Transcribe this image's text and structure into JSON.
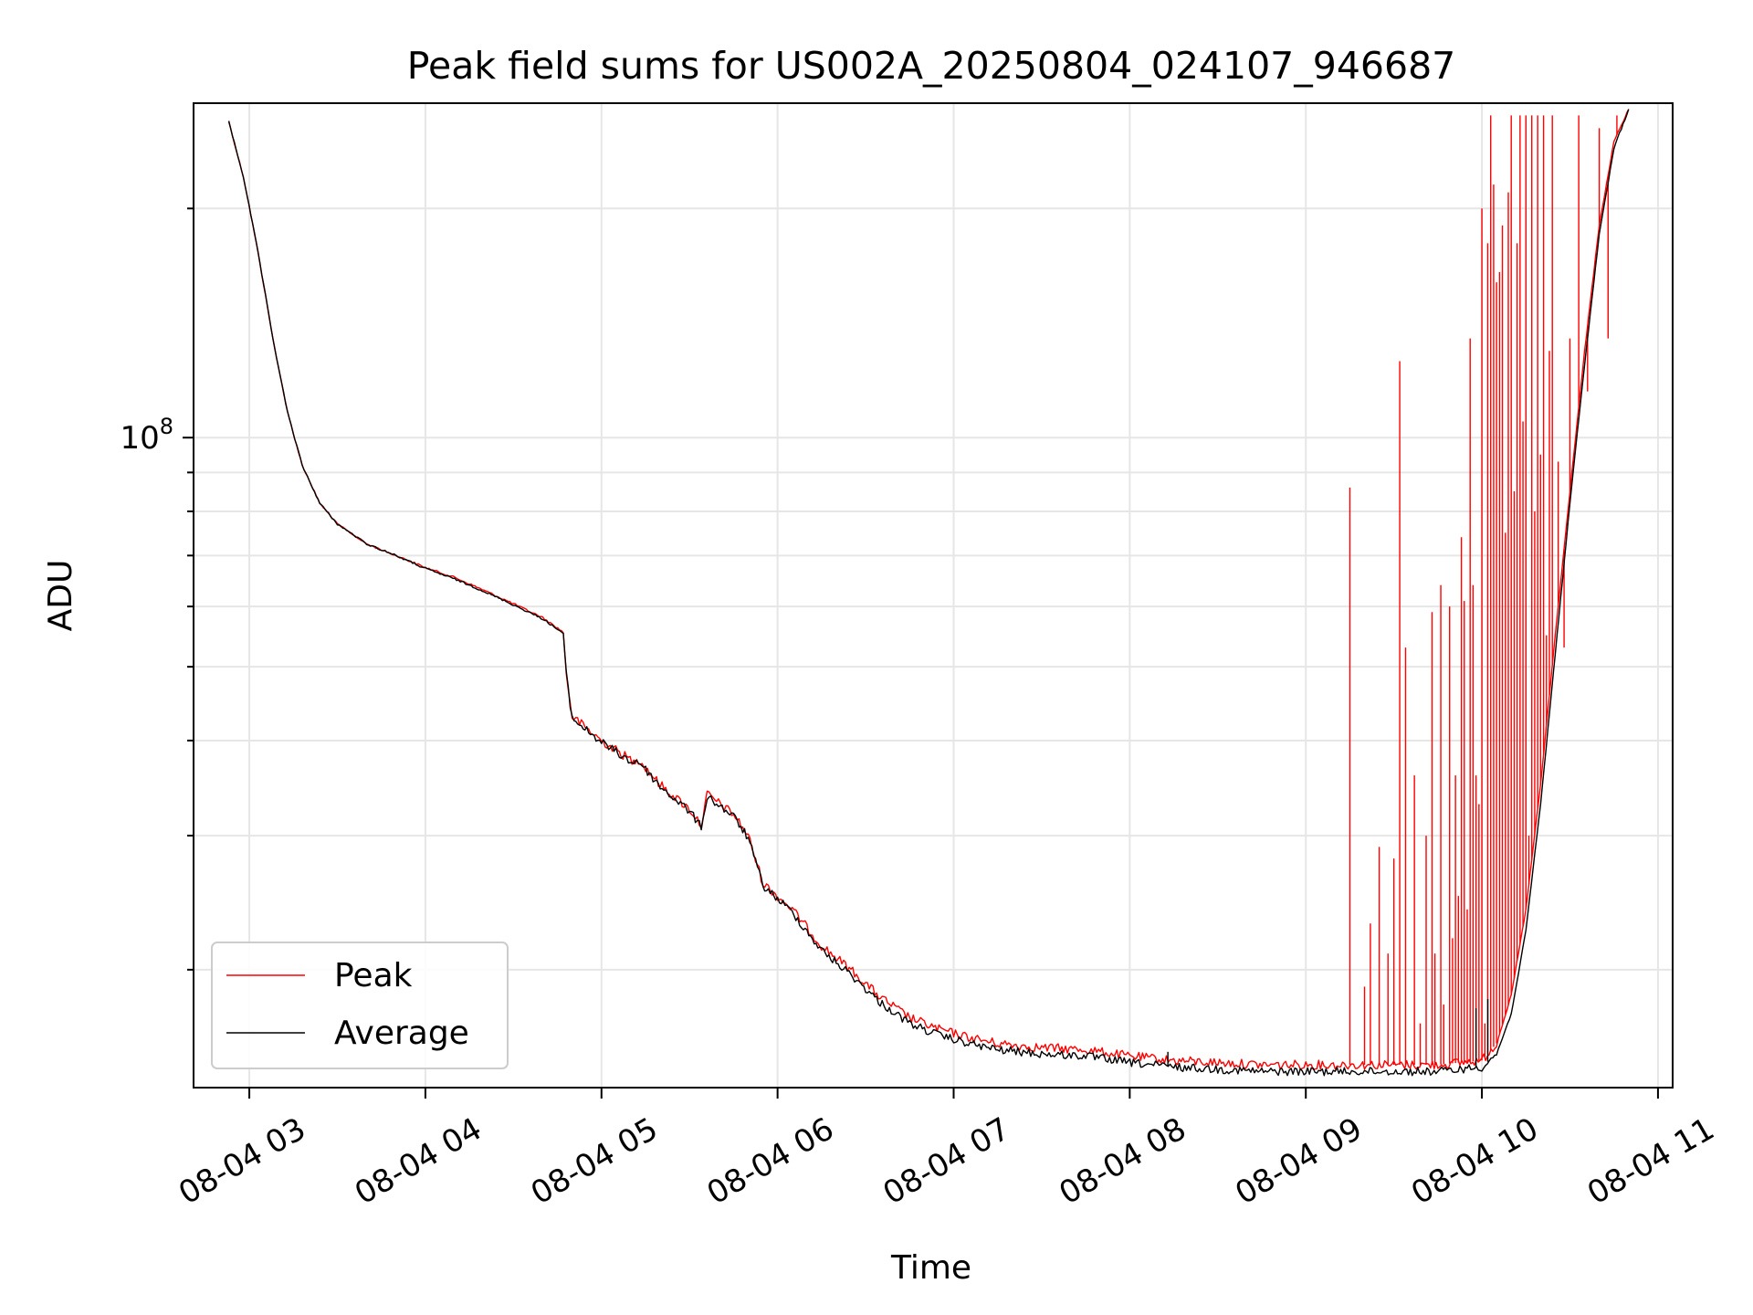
{
  "chart_data": {
    "type": "line",
    "title": "Peak field sums for US002A_20250804_024107_946687",
    "xlabel": "Time",
    "ylabel": "ADU",
    "yscale": "log",
    "grid": true,
    "legend_position": "lower-left",
    "ylim": [
      14000000,
      275000000
    ],
    "xlim": [
      "2025-08-04 02:41",
      "2025-08-04 11:05"
    ],
    "x_ticks": [
      "2025-08-04 03:00",
      "2025-08-04 04:00",
      "2025-08-04 05:00",
      "2025-08-04 06:00",
      "2025-08-04 07:00",
      "2025-08-04 08:00",
      "2025-08-04 09:00",
      "2025-08-04 10:00",
      "2025-08-04 11:00"
    ],
    "x_tick_labels": [
      "08-04 03",
      "08-04 04",
      "08-04 05",
      "08-04 06",
      "08-04 07",
      "08-04 08",
      "08-04 09",
      "08-04 10",
      "08-04 11"
    ],
    "y_major_tick_labels": [
      {
        "value": 100000000,
        "base": "10",
        "exp": "8"
      }
    ],
    "series": [
      {
        "name": "Peak",
        "color": "#ff0000",
        "points": [
          [
            "2025-08-04 02:53",
            260000000
          ],
          [
            "2025-08-04 02:58",
            220000000
          ],
          [
            "2025-08-04 03:03",
            175000000
          ],
          [
            "2025-08-04 03:08",
            135000000
          ],
          [
            "2025-08-04 03:13",
            108000000
          ],
          [
            "2025-08-04 03:18",
            92000000
          ],
          [
            "2025-08-04 03:24",
            82000000
          ],
          [
            "2025-08-04 03:30",
            77000000
          ],
          [
            "2025-08-04 03:40",
            72500000
          ],
          [
            "2025-08-04 03:50",
            70000000
          ],
          [
            "2025-08-04 04:00",
            67500000
          ],
          [
            "2025-08-04 04:10",
            65500000
          ],
          [
            "2025-08-04 04:20",
            63000000
          ],
          [
            "2025-08-04 04:30",
            60500000
          ],
          [
            "2025-08-04 04:40",
            58000000
          ],
          [
            "2025-08-04 04:47",
            55500000
          ],
          [
            "2025-08-04 04:48",
            49000000
          ],
          [
            "2025-08-04 04:50",
            43000000
          ],
          [
            "2025-08-04 05:00",
            40000000
          ],
          [
            "2025-08-04 05:11",
            37500000
          ],
          [
            "2025-08-04 05:12",
            38000000
          ],
          [
            "2025-08-04 05:20",
            35000000
          ],
          [
            "2025-08-04 05:30",
            32500000
          ],
          [
            "2025-08-04 05:34",
            31000000
          ],
          [
            "2025-08-04 05:36",
            34000000
          ],
          [
            "2025-08-04 05:45",
            32000000
          ],
          [
            "2025-08-04 05:50",
            30000000
          ],
          [
            "2025-08-04 05:55",
            26000000
          ],
          [
            "2025-08-04 06:05",
            24000000
          ],
          [
            "2025-08-04 06:15",
            21500000
          ],
          [
            "2025-08-04 06:25",
            20000000
          ],
          [
            "2025-08-04 06:35",
            18400000
          ],
          [
            "2025-08-04 06:45",
            17300000
          ],
          [
            "2025-08-04 06:55",
            16700000
          ],
          [
            "2025-08-04 07:05",
            16300000
          ],
          [
            "2025-08-04 07:15",
            16000000
          ],
          [
            "2025-08-04 07:30",
            15800000
          ],
          [
            "2025-08-04 07:45",
            15700000
          ],
          [
            "2025-08-04 08:00",
            15400000
          ],
          [
            "2025-08-04 08:15",
            15200000
          ],
          [
            "2025-08-04 08:30",
            15100000
          ],
          [
            "2025-08-04 08:45",
            15000000
          ],
          [
            "2025-08-04 09:00",
            15000000
          ],
          [
            "2025-08-04 09:15",
            15000000
          ],
          [
            "2025-08-04 09:30",
            15000000
          ],
          [
            "2025-08-04 09:45",
            15000000
          ],
          [
            "2025-08-04 10:00",
            15200000
          ],
          [
            "2025-08-04 10:05",
            16000000
          ],
          [
            "2025-08-04 10:10",
            18500000
          ],
          [
            "2025-08-04 10:15",
            24000000
          ],
          [
            "2025-08-04 10:20",
            35000000
          ],
          [
            "2025-08-04 10:25",
            55000000
          ],
          [
            "2025-08-04 10:30",
            85000000
          ],
          [
            "2025-08-04 10:35",
            130000000
          ],
          [
            "2025-08-04 10:40",
            190000000
          ],
          [
            "2025-08-04 10:45",
            245000000
          ],
          [
            "2025-08-04 10:50",
            270000000
          ]
        ],
        "spikes": [
          [
            "2025-08-04 09:15",
            86000000
          ],
          [
            "2025-08-04 09:20",
            19000000
          ],
          [
            "2025-08-04 09:22",
            23000000
          ],
          [
            "2025-08-04 09:25",
            29000000
          ],
          [
            "2025-08-04 09:28",
            21000000
          ],
          [
            "2025-08-04 09:30",
            28000000
          ],
          [
            "2025-08-04 09:32",
            126000000
          ],
          [
            "2025-08-04 09:34",
            53000000
          ],
          [
            "2025-08-04 09:37",
            36000000
          ],
          [
            "2025-08-04 09:39",
            17000000
          ],
          [
            "2025-08-04 09:41",
            30000000
          ],
          [
            "2025-08-04 09:43",
            59000000
          ],
          [
            "2025-08-04 09:44",
            21000000
          ],
          [
            "2025-08-04 09:46",
            64000000
          ],
          [
            "2025-08-04 09:47",
            18000000
          ],
          [
            "2025-08-04 09:49",
            60000000
          ],
          [
            "2025-08-04 09:50",
            22000000
          ],
          [
            "2025-08-04 09:51",
            36000000
          ],
          [
            "2025-08-04 09:52",
            25000000
          ],
          [
            "2025-08-04 09:53",
            74000000
          ],
          [
            "2025-08-04 09:54",
            61000000
          ],
          [
            "2025-08-04 09:55",
            24000000
          ],
          [
            "2025-08-04 09:56",
            135000000
          ],
          [
            "2025-08-04 09:57",
            64000000
          ],
          [
            "2025-08-04 09:58",
            36000000
          ],
          [
            "2025-08-04 09:59",
            33000000
          ],
          [
            "2025-08-04 10:00",
            200000000
          ],
          [
            "2025-08-04 10:01",
            17000000
          ],
          [
            "2025-08-04 10:02",
            180000000
          ],
          [
            "2025-08-04 10:03",
            265000000
          ],
          [
            "2025-08-04 10:04",
            215000000
          ],
          [
            "2025-08-04 10:05",
            160000000
          ],
          [
            "2025-08-04 10:06",
            165000000
          ],
          [
            "2025-08-04 10:07",
            190000000
          ],
          [
            "2025-08-04 10:08",
            75000000
          ],
          [
            "2025-08-04 10:09",
            210000000
          ],
          [
            "2025-08-04 10:10",
            265000000
          ],
          [
            "2025-08-04 10:11",
            85000000
          ],
          [
            "2025-08-04 10:12",
            180000000
          ],
          [
            "2025-08-04 10:13",
            265000000
          ],
          [
            "2025-08-04 10:14",
            105000000
          ],
          [
            "2025-08-04 10:15",
            265000000
          ],
          [
            "2025-08-04 10:16",
            30000000
          ],
          [
            "2025-08-04 10:17",
            265000000
          ],
          [
            "2025-08-04 10:18",
            80000000
          ],
          [
            "2025-08-04 10:19",
            265000000
          ],
          [
            "2025-08-04 10:20",
            95000000
          ],
          [
            "2025-08-04 10:21",
            265000000
          ],
          [
            "2025-08-04 10:22",
            55000000
          ],
          [
            "2025-08-04 10:23",
            130000000
          ],
          [
            "2025-08-04 10:24",
            265000000
          ],
          [
            "2025-08-04 10:26",
            93000000
          ],
          [
            "2025-08-04 10:28",
            53000000
          ],
          [
            "2025-08-04 10:30",
            135000000
          ],
          [
            "2025-08-04 10:33",
            265000000
          ],
          [
            "2025-08-04 10:36",
            115000000
          ],
          [
            "2025-08-04 10:40",
            255000000
          ],
          [
            "2025-08-04 10:43",
            135000000
          ],
          [
            "2025-08-04 10:46",
            265000000
          ]
        ]
      },
      {
        "name": "Average",
        "color": "#000000",
        "points": [
          [
            "2025-08-04 02:53",
            260000000
          ],
          [
            "2025-08-04 02:58",
            220000000
          ],
          [
            "2025-08-04 03:03",
            175000000
          ],
          [
            "2025-08-04 03:08",
            135000000
          ],
          [
            "2025-08-04 03:13",
            108000000
          ],
          [
            "2025-08-04 03:18",
            92000000
          ],
          [
            "2025-08-04 03:24",
            82000000
          ],
          [
            "2025-08-04 03:30",
            77000000
          ],
          [
            "2025-08-04 03:40",
            72500000
          ],
          [
            "2025-08-04 03:50",
            70000000
          ],
          [
            "2025-08-04 04:00",
            67300000
          ],
          [
            "2025-08-04 04:10",
            65200000
          ],
          [
            "2025-08-04 04:20",
            62800000
          ],
          [
            "2025-08-04 04:30",
            60300000
          ],
          [
            "2025-08-04 04:40",
            57800000
          ],
          [
            "2025-08-04 04:47",
            55300000
          ],
          [
            "2025-08-04 04:48",
            48800000
          ],
          [
            "2025-08-04 04:50",
            42800000
          ],
          [
            "2025-08-04 05:00",
            39800000
          ],
          [
            "2025-08-04 05:11",
            37300000
          ],
          [
            "2025-08-04 05:12",
            37800000
          ],
          [
            "2025-08-04 05:20",
            34800000
          ],
          [
            "2025-08-04 05:30",
            32300000
          ],
          [
            "2025-08-04 05:34",
            30800000
          ],
          [
            "2025-08-04 05:36",
            33800000
          ],
          [
            "2025-08-04 05:45",
            31800000
          ],
          [
            "2025-08-04 05:50",
            29800000
          ],
          [
            "2025-08-04 05:55",
            25800000
          ],
          [
            "2025-08-04 06:05",
            23800000
          ],
          [
            "2025-08-04 06:15",
            21200000
          ],
          [
            "2025-08-04 06:25",
            19700000
          ],
          [
            "2025-08-04 06:35",
            18100000
          ],
          [
            "2025-08-04 06:45",
            17000000
          ],
          [
            "2025-08-04 06:55",
            16400000
          ],
          [
            "2025-08-04 07:05",
            16000000
          ],
          [
            "2025-08-04 07:15",
            15700000
          ],
          [
            "2025-08-04 07:30",
            15500000
          ],
          [
            "2025-08-04 07:45",
            15400000
          ],
          [
            "2025-08-04 08:00",
            15100000
          ],
          [
            "2025-08-04 08:15",
            14900000
          ],
          [
            "2025-08-04 08:30",
            14800000
          ],
          [
            "2025-08-04 08:45",
            14700000
          ],
          [
            "2025-08-04 09:00",
            14700000
          ],
          [
            "2025-08-04 09:15",
            14700000
          ],
          [
            "2025-08-04 09:30",
            14700000
          ],
          [
            "2025-08-04 09:45",
            14700000
          ],
          [
            "2025-08-04 10:00",
            14900000
          ],
          [
            "2025-08-04 10:05",
            15500000
          ],
          [
            "2025-08-04 10:10",
            17500000
          ],
          [
            "2025-08-04 10:15",
            22500000
          ],
          [
            "2025-08-04 10:20",
            33000000
          ],
          [
            "2025-08-04 10:25",
            52000000
          ],
          [
            "2025-08-04 10:30",
            82000000
          ],
          [
            "2025-08-04 10:35",
            125000000
          ],
          [
            "2025-08-04 10:40",
            185000000
          ],
          [
            "2025-08-04 10:45",
            240000000
          ],
          [
            "2025-08-04 10:50",
            270000000
          ]
        ],
        "spikes": [
          [
            "2025-08-04 08:13",
            15600000
          ],
          [
            "2025-08-04 09:58",
            17800000
          ],
          [
            "2025-08-04 10:02",
            18300000
          ]
        ]
      }
    ]
  }
}
